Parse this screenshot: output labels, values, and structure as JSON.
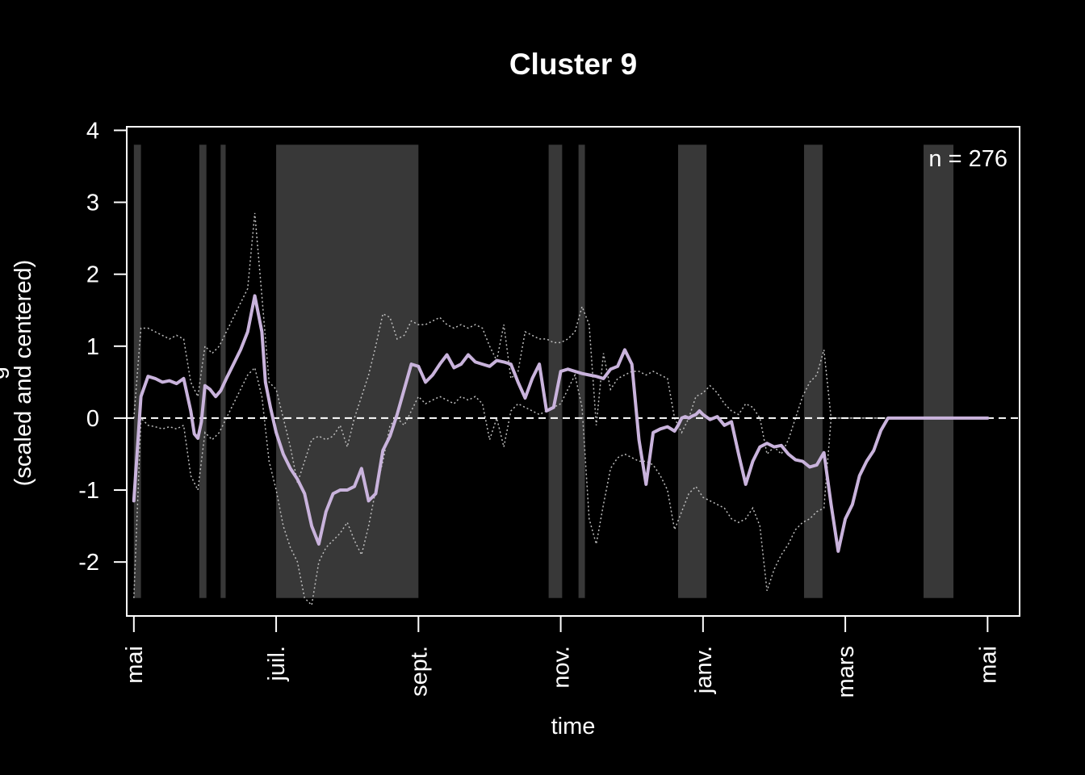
{
  "chart_data": {
    "type": "line",
    "title": "Cluster 9",
    "xlabel": "time",
    "ylabel": "(scaled and centered)",
    "ylabel_partial": "g",
    "annotation": "n = 276",
    "x_unit": "months",
    "x_ticks": [
      "mai",
      "juil.",
      "sept.",
      "nov.",
      "janv.",
      "mars",
      "mai"
    ],
    "xlim": [
      -0.1,
      12.45
    ],
    "ylim": [
      -2.75,
      4.05
    ],
    "y_ticks": [
      -2,
      -1,
      0,
      1,
      2,
      3,
      4
    ],
    "reference_line": 0,
    "grid": false,
    "colors": {
      "background": "#000000",
      "foreground": "#ffffff",
      "mean_line": "#c9b3dc",
      "band_lines": "#bdbdbd",
      "shaded_periods": "#383838"
    },
    "shaded_periods": [
      [
        0.0,
        0.1
      ],
      [
        0.92,
        1.02
      ],
      [
        1.22,
        1.29
      ],
      [
        2.0,
        4.0
      ],
      [
        5.83,
        6.02
      ],
      [
        6.25,
        6.34
      ],
      [
        7.65,
        8.05
      ],
      [
        9.42,
        9.68
      ],
      [
        11.1,
        11.52
      ]
    ],
    "series": [
      {
        "role": "mean",
        "x": [
          0.0,
          0.1,
          0.2,
          0.3,
          0.4,
          0.5,
          0.6,
          0.7,
          0.8,
          0.85,
          0.9,
          0.95,
          1.0,
          1.07,
          1.15,
          1.22,
          1.3,
          1.4,
          1.5,
          1.6,
          1.7,
          1.8,
          1.85,
          1.92,
          2.0,
          2.1,
          2.2,
          2.3,
          2.4,
          2.5,
          2.6,
          2.7,
          2.8,
          2.9,
          3.0,
          3.1,
          3.2,
          3.3,
          3.4,
          3.5,
          3.6,
          3.7,
          3.8,
          3.9,
          4.0,
          4.1,
          4.2,
          4.3,
          4.4,
          4.5,
          4.6,
          4.7,
          4.8,
          4.9,
          5.0,
          5.1,
          5.2,
          5.3,
          5.4,
          5.5,
          5.6,
          5.7,
          5.8,
          5.9,
          6.0,
          6.1,
          6.2,
          6.3,
          6.4,
          6.5,
          6.6,
          6.7,
          6.8,
          6.9,
          7.0,
          7.1,
          7.2,
          7.3,
          7.4,
          7.5,
          7.6,
          7.65,
          7.7,
          7.75,
          7.8,
          7.85,
          7.9,
          7.95,
          8.0,
          8.1,
          8.15,
          8.2,
          8.3,
          8.4,
          8.5,
          8.6,
          8.7,
          8.8,
          8.9,
          9.0,
          9.1,
          9.2,
          9.3,
          9.4,
          9.5,
          9.6,
          9.7,
          9.8,
          9.9,
          10.0,
          10.1,
          10.2,
          10.3,
          10.4,
          10.5,
          10.6,
          10.7,
          10.8,
          10.9,
          11.0,
          11.1,
          11.2,
          11.3,
          11.4,
          11.5,
          11.6,
          11.7,
          11.8,
          11.9,
          12.0
        ],
        "y": [
          -1.15,
          0.3,
          0.58,
          0.55,
          0.5,
          0.52,
          0.48,
          0.55,
          0.1,
          -0.22,
          -0.28,
          -0.05,
          0.45,
          0.4,
          0.3,
          0.38,
          0.55,
          0.75,
          0.95,
          1.2,
          1.7,
          1.2,
          0.5,
          0.15,
          -0.2,
          -0.5,
          -0.7,
          -0.85,
          -1.05,
          -1.5,
          -1.75,
          -1.3,
          -1.05,
          -1.0,
          -1.0,
          -0.95,
          -0.7,
          -1.15,
          -1.05,
          -0.45,
          -0.25,
          0.05,
          0.4,
          0.75,
          0.72,
          0.5,
          0.6,
          0.75,
          0.88,
          0.7,
          0.75,
          0.88,
          0.78,
          0.75,
          0.72,
          0.8,
          0.78,
          0.75,
          0.5,
          0.28,
          0.55,
          0.75,
          0.1,
          0.15,
          0.65,
          0.68,
          0.65,
          0.62,
          0.6,
          0.58,
          0.55,
          0.68,
          0.72,
          0.95,
          0.75,
          -0.3,
          -0.92,
          -0.2,
          -0.15,
          -0.12,
          -0.18,
          -0.1,
          0.0,
          0.02,
          0.0,
          0.03,
          0.05,
          0.1,
          0.05,
          -0.02,
          0.0,
          0.02,
          -0.1,
          -0.05,
          -0.5,
          -0.92,
          -0.6,
          -0.4,
          -0.35,
          -0.4,
          -0.38,
          -0.5,
          -0.58,
          -0.6,
          -0.68,
          -0.65,
          -0.48,
          -1.2,
          -1.85,
          -1.4,
          -1.2,
          -0.8,
          -0.6,
          -0.45,
          -0.17,
          0.0,
          0.0,
          0.0,
          0.0,
          0.0,
          0.0,
          0.0,
          0.0,
          0.0,
          0.0,
          0.0,
          0.0,
          0.0,
          0.0,
          0.0
        ]
      },
      {
        "role": "upper",
        "x": [
          0.0,
          0.1,
          0.2,
          0.3,
          0.4,
          0.5,
          0.6,
          0.7,
          0.8,
          0.9,
          1.0,
          1.1,
          1.2,
          1.3,
          1.4,
          1.5,
          1.6,
          1.7,
          1.8,
          1.9,
          2.0,
          2.1,
          2.2,
          2.3,
          2.4,
          2.5,
          2.6,
          2.7,
          2.8,
          2.9,
          3.0,
          3.1,
          3.2,
          3.3,
          3.4,
          3.5,
          3.6,
          3.7,
          3.8,
          3.9,
          4.0,
          4.1,
          4.2,
          4.3,
          4.4,
          4.5,
          4.6,
          4.7,
          4.8,
          4.9,
          5.0,
          5.1,
          5.2,
          5.3,
          5.4,
          5.5,
          5.6,
          5.7,
          5.8,
          5.9,
          6.0,
          6.1,
          6.2,
          6.3,
          6.4,
          6.5,
          6.6,
          6.7,
          6.8,
          6.9,
          7.0,
          7.1,
          7.2,
          7.3,
          7.4,
          7.5,
          7.6,
          7.7,
          7.8,
          7.9,
          8.0,
          8.1,
          8.2,
          8.3,
          8.4,
          8.5,
          8.6,
          8.7,
          8.8,
          8.9,
          9.0,
          9.1,
          9.2,
          9.3,
          9.4,
          9.5,
          9.6,
          9.7,
          9.8,
          9.9,
          10.0,
          10.1,
          10.2,
          10.3,
          10.4,
          10.5,
          10.6,
          10.7,
          10.8,
          10.9,
          11.0,
          11.1,
          11.2,
          11.3,
          11.4,
          11.5,
          11.6,
          11.7,
          11.8,
          11.9,
          12.0
        ],
        "y": [
          0.0,
          1.25,
          1.25,
          1.2,
          1.15,
          1.1,
          1.15,
          1.1,
          0.5,
          0.3,
          1.0,
          0.9,
          1.0,
          1.2,
          1.4,
          1.6,
          1.8,
          2.85,
          1.7,
          0.5,
          0.4,
          0.0,
          -0.4,
          -0.9,
          -0.6,
          -0.3,
          -0.25,
          -0.3,
          -0.25,
          -0.1,
          -0.4,
          0.0,
          0.3,
          0.6,
          1.0,
          1.45,
          1.4,
          1.1,
          1.15,
          1.35,
          1.3,
          1.3,
          1.35,
          1.4,
          1.3,
          1.25,
          1.3,
          1.25,
          1.3,
          1.25,
          1.0,
          0.8,
          1.3,
          0.55,
          0.65,
          1.2,
          1.15,
          1.1,
          1.1,
          1.05,
          1.05,
          1.1,
          1.2,
          1.55,
          1.3,
          -0.1,
          0.9,
          0.4,
          0.55,
          0.6,
          0.65,
          0.65,
          0.6,
          0.65,
          0.6,
          0.55,
          0.0,
          -0.2,
          0.0,
          0.3,
          0.35,
          0.45,
          0.35,
          0.2,
          0.1,
          0.05,
          0.2,
          0.15,
          0.0,
          -0.5,
          -0.4,
          -0.5,
          -0.3,
          0.0,
          0.3,
          0.5,
          0.6,
          0.95,
          0.0,
          0.0,
          0.0,
          0.0,
          0.0,
          0.0,
          0.0,
          0.0,
          0.0,
          0.0,
          0.0,
          0.0,
          0.0,
          0.0,
          0.0,
          0.0,
          0.0,
          0.0,
          0.0,
          0.0,
          0.0,
          0.0,
          0.0
        ]
      },
      {
        "role": "lower",
        "x": [
          0.0,
          0.1,
          0.2,
          0.3,
          0.4,
          0.5,
          0.6,
          0.7,
          0.8,
          0.9,
          1.0,
          1.1,
          1.2,
          1.3,
          1.4,
          1.5,
          1.6,
          1.7,
          1.8,
          1.9,
          2.0,
          2.1,
          2.2,
          2.3,
          2.4,
          2.5,
          2.6,
          2.7,
          2.8,
          2.9,
          3.0,
          3.1,
          3.2,
          3.3,
          3.4,
          3.5,
          3.6,
          3.7,
          3.8,
          3.9,
          4.0,
          4.1,
          4.2,
          4.3,
          4.4,
          4.5,
          4.6,
          4.7,
          4.8,
          4.9,
          5.0,
          5.1,
          5.2,
          5.3,
          5.4,
          5.5,
          5.6,
          5.7,
          5.8,
          5.9,
          6.0,
          6.1,
          6.2,
          6.3,
          6.4,
          6.5,
          6.6,
          6.7,
          6.8,
          6.9,
          7.0,
          7.1,
          7.2,
          7.3,
          7.4,
          7.5,
          7.6,
          7.7,
          7.8,
          7.9,
          8.0,
          8.1,
          8.2,
          8.3,
          8.4,
          8.5,
          8.6,
          8.7,
          8.8,
          8.9,
          9.0,
          9.1,
          9.2,
          9.3,
          9.4,
          9.5,
          9.6,
          9.7,
          9.8,
          9.9,
          10.0,
          10.1,
          10.2,
          10.3,
          10.4,
          10.5,
          10.6,
          10.7,
          10.8,
          10.9,
          11.0,
          11.1,
          11.2,
          11.3,
          11.4,
          11.5,
          11.6,
          11.7,
          11.8,
          11.9,
          12.0
        ],
        "y": [
          -2.5,
          0.0,
          -0.1,
          -0.12,
          -0.15,
          -0.12,
          -0.15,
          -0.1,
          -0.8,
          -1.0,
          -0.2,
          -0.3,
          -0.2,
          0.0,
          0.2,
          0.4,
          0.6,
          0.7,
          0.3,
          -0.6,
          -1.0,
          -1.5,
          -1.8,
          -2.0,
          -2.5,
          -2.6,
          -2.0,
          -1.8,
          -1.7,
          -1.6,
          -1.45,
          -1.7,
          -1.9,
          -1.5,
          -1.0,
          -0.6,
          -0.1,
          0.0,
          -0.1,
          0.1,
          0.3,
          0.2,
          0.25,
          0.3,
          0.25,
          0.2,
          0.3,
          0.25,
          0.3,
          0.2,
          -0.3,
          0.0,
          -0.4,
          0.1,
          0.2,
          0.15,
          0.1,
          0.05,
          0.1,
          0.15,
          0.2,
          0.4,
          0.6,
          0.15,
          -1.4,
          -1.75,
          -1.2,
          -0.7,
          -0.55,
          -0.5,
          -0.55,
          -0.6,
          -0.6,
          -0.65,
          -0.8,
          -1.0,
          -1.55,
          -1.3,
          -1.05,
          -0.95,
          -1.1,
          -1.15,
          -1.2,
          -1.25,
          -1.4,
          -1.45,
          -1.4,
          -1.25,
          -1.5,
          -2.4,
          -2.1,
          -1.9,
          -1.75,
          -1.55,
          -1.45,
          -1.4,
          -1.3,
          -1.25,
          0.0,
          0.0,
          0.0,
          0.0,
          0.0,
          0.0,
          0.0,
          0.0,
          0.0,
          0.0,
          0.0,
          0.0,
          0.0,
          0.0,
          0.0,
          0.0,
          0.0,
          0.0,
          0.0,
          0.0,
          0.0,
          0.0,
          0.0
        ]
      }
    ]
  }
}
